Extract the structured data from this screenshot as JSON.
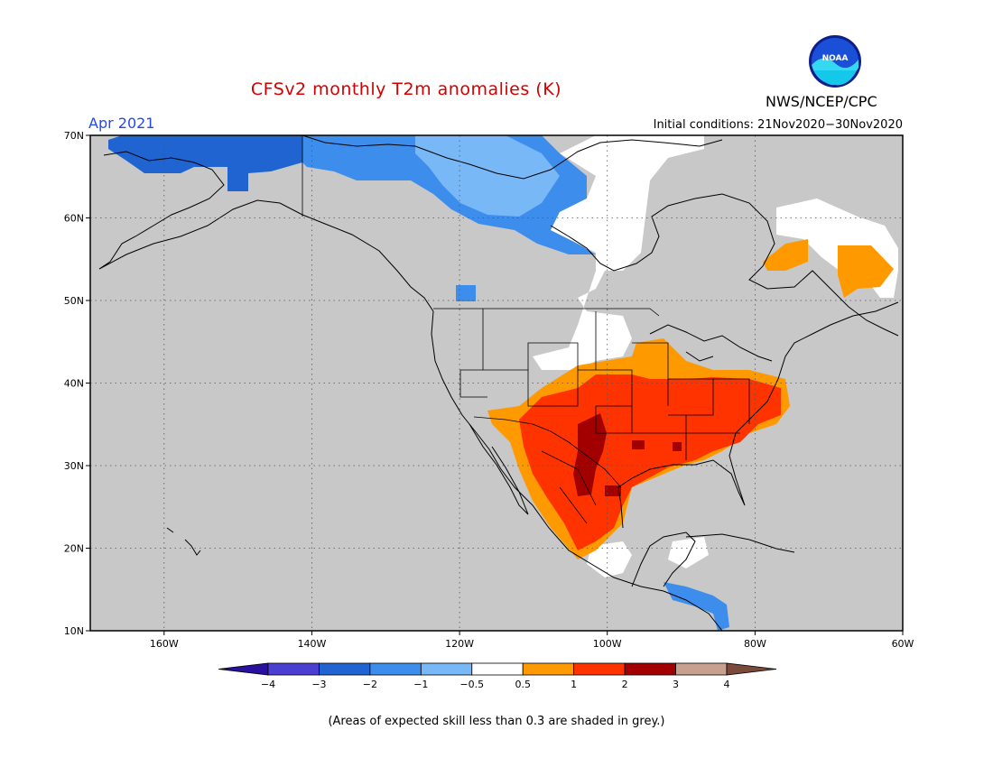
{
  "title": "CFSv2 monthly T2m anomalies (K)",
  "valid_period": "Apr 2021",
  "initial_conditions": "Initial conditions: 21Nov2020−30Nov2020",
  "organization": "NWS/NCEP/CPC",
  "logo_text": "NOAA",
  "footer_note": "(Areas of expected skill less than 0.3 are shaded in grey.)",
  "map": {
    "lon_range": [
      -170,
      -60
    ],
    "lat_range": [
      10,
      70
    ],
    "lat_labels": [
      "10N",
      "20N",
      "30N",
      "40N",
      "50N",
      "60N",
      "70N"
    ],
    "lon_labels": [
      "160W",
      "140W",
      "120W",
      "100W",
      "80W",
      "60W"
    ],
    "background_color": "#c8c8c8"
  },
  "colorbar": {
    "tick_labels": [
      "−4",
      "−3",
      "−2",
      "−1",
      "−0.5",
      "0.5",
      "1",
      "2",
      "3",
      "4"
    ],
    "colors": [
      "#2a10a0",
      "#4a3fd0",
      "#1f64d0",
      "#3d8eec",
      "#78b8f6",
      "#ffffff",
      "#ff9900",
      "#ff3300",
      "#a20000",
      "#c8a090",
      "#7b4a3a"
    ]
  }
}
